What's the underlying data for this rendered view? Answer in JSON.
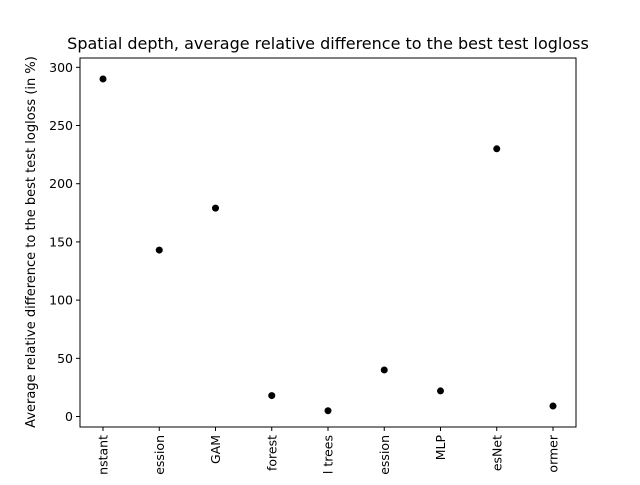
{
  "chart_data": {
    "type": "scatter",
    "title": "Spatial depth, average relative difference to the best test logloss",
    "xlabel": "",
    "ylabel": "Average relative difference to the best test logloss (in %)",
    "categories": [
      "nstant",
      "ession",
      "GAM",
      "forest",
      "l trees",
      "ession",
      "MLP",
      "esNet",
      "ormer"
    ],
    "values": [
      290,
      143,
      179,
      18,
      5,
      40,
      22,
      230,
      9
    ],
    "ylim": [
      -9,
      308
    ],
    "yticks": [
      0,
      50,
      100,
      150,
      200,
      250,
      300
    ],
    "grid": false,
    "legend": "none",
    "marker_color": "#000000"
  }
}
